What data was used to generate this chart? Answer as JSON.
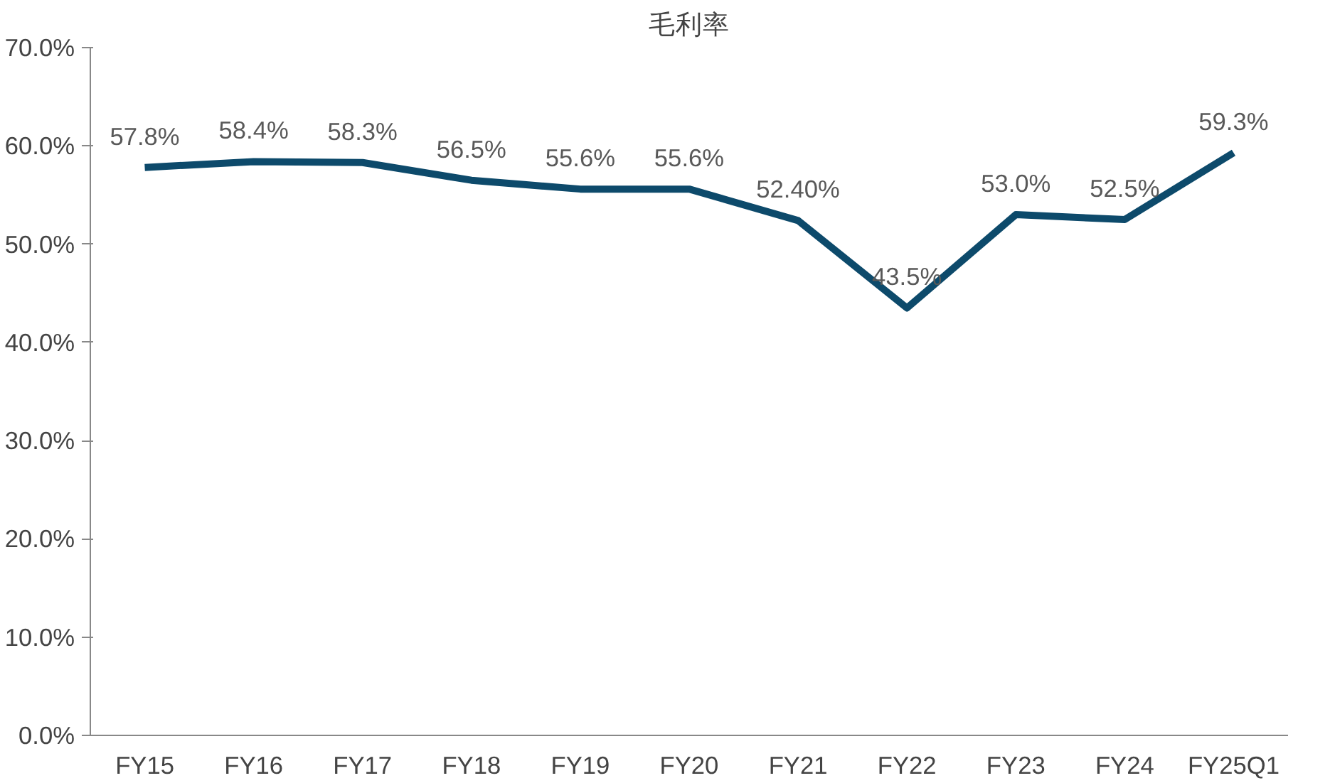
{
  "chart_data": {
    "type": "line",
    "title": "毛利率",
    "categories": [
      "FY15",
      "FY16",
      "FY17",
      "FY18",
      "FY19",
      "FY20",
      "FY21",
      "FY22",
      "FY23",
      "FY24",
      "FY25Q1"
    ],
    "series": [
      {
        "color": "#0d4a6b",
        "values": [
          57.8,
          58.4,
          58.3,
          56.5,
          55.6,
          55.6,
          52.4,
          43.5,
          53.0,
          52.5,
          59.3
        ],
        "value_labels": [
          "57.8%",
          "58.4%",
          "58.3%",
          "56.5%",
          "55.6%",
          "55.6%",
          "52.40%",
          "43.5%",
          "53.0%",
          "52.5%",
          "59.3%"
        ]
      }
    ],
    "ylim": [
      0,
      70
    ],
    "yticks": [
      {
        "value": 0,
        "label": "0.0%"
      },
      {
        "value": 10,
        "label": "10.0%"
      },
      {
        "value": 20,
        "label": "20.0%"
      },
      {
        "value": 30,
        "label": "30.0%"
      },
      {
        "value": 40,
        "label": "40.0%"
      },
      {
        "value": 50,
        "label": "50.0%"
      },
      {
        "value": 60,
        "label": "60.0%"
      },
      {
        "value": 70,
        "label": "70.0%"
      }
    ],
    "grid": false,
    "marker": "none",
    "line_style": "solid"
  }
}
